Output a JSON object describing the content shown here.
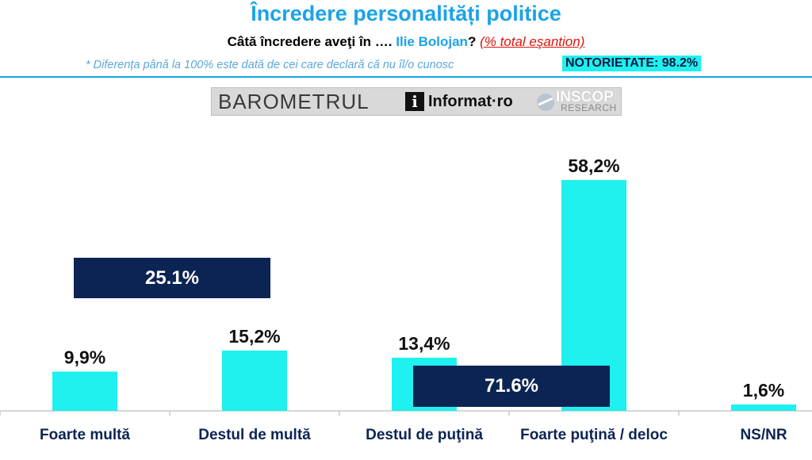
{
  "header": {
    "title": "Încredere personalități politice",
    "question_prefix": "Câtă încredere aveţi în ….",
    "person_name": "Ilie Bolojan",
    "question_mark": "?",
    "question_note": "(% total eşantion)",
    "footnote": "* Diferența până la 100% este dată de cei care declară că nu îl/o cunosc",
    "notoriety": "NOTORIETATE: 98.2%"
  },
  "logos": {
    "barometrul": "BAROMETRUL",
    "informat_mark": "i",
    "informat": "Informat·ro",
    "inscop": "INSCOP",
    "research": "RESEARCH"
  },
  "colors": {
    "bar": "#1ff0f0",
    "box": "#0c2454",
    "label": "#0c2454",
    "accent": "#1aa3e8"
  },
  "chart_data": {
    "type": "bar",
    "categories": [
      "Foarte multă",
      "Destul de multă",
      "Destul de puţină",
      "Foarte puţină / deloc",
      "NS/NR"
    ],
    "values": [
      9.9,
      15.2,
      13.4,
      58.2,
      1.6
    ],
    "value_labels": [
      "9,9%",
      "15,2%",
      "13,4%",
      "58,2%",
      "1,6%"
    ],
    "ylim": [
      0,
      60
    ],
    "grid": false,
    "aggregates": [
      {
        "label": "25.1%",
        "categories": [
          0,
          1
        ]
      },
      {
        "label": "71.6%",
        "categories": [
          2,
          3
        ]
      }
    ]
  }
}
